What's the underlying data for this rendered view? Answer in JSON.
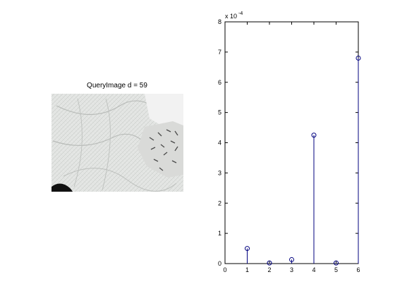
{
  "colors": {
    "background": "#ffffff",
    "axes": "#000000",
    "series": "#00007f"
  },
  "query_panel": {
    "title": "QueryImage d = 59",
    "image_description": "photo"
  },
  "chart_data": {
    "type": "stem",
    "x": [
      1,
      2,
      3,
      4,
      5,
      6
    ],
    "values": [
      0.5,
      0.02,
      0.13,
      4.25,
      0.02,
      6.8
    ],
    "y_multiplier_label": "x 10",
    "y_multiplier_exponent": "-4",
    "xlim": [
      0,
      6
    ],
    "ylim": [
      0,
      8
    ],
    "xticks": [
      0,
      1,
      2,
      3,
      4,
      5,
      6
    ],
    "yticks": [
      0,
      1,
      2,
      3,
      4,
      5,
      6,
      7,
      8
    ],
    "marker": "circle",
    "grid": false,
    "legend": "none"
  }
}
